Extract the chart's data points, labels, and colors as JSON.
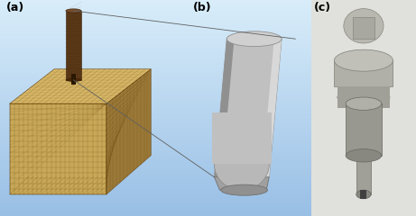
{
  "figsize": [
    4.61,
    2.4
  ],
  "dpi": 100,
  "panels": [
    "(a)",
    "(b)",
    "(c)"
  ],
  "bg_color_a_top": "#85b8d8",
  "bg_color_a_bot": "#c8dde8",
  "bg_color_b": "#aac8e0",
  "bg_color_c": "#dcdcdc",
  "label_fontsize": 9,
  "label_fontweight": "bold",
  "cube_front_color": "#c8a858",
  "cube_top_color": "#d8b868",
  "cube_right_color": "#9a7838",
  "cube_mesh_color": "#5a3800",
  "nozzle_color": "#4a3010",
  "nozzle_mesh_color": "#3a2008",
  "line_color": "#606060"
}
